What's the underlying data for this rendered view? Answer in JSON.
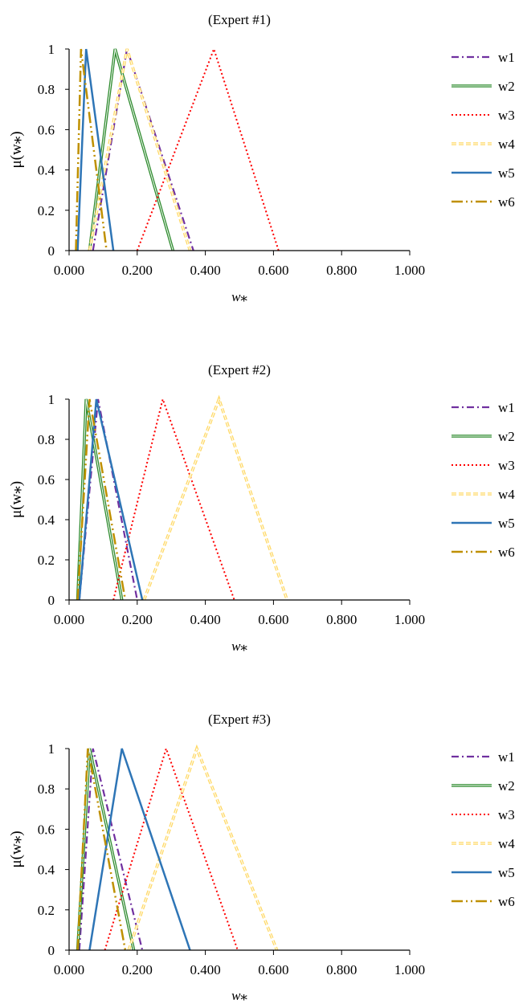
{
  "legend_labels": {
    "w1": "w1",
    "w2": "w2",
    "w3": "w3",
    "w4": "w4",
    "w5": "w5",
    "w6": "w6"
  },
  "series_colors": {
    "w1": "#7030A0",
    "w2": "#2E8B2E",
    "w3": "#FF0000",
    "w4": "#FFD966",
    "w5": "#2E75B6",
    "w6": "#BF9000"
  },
  "chart_data": [
    {
      "type": "line",
      "title": "(Expert #1)",
      "xlabel": "w⁎",
      "ylabel": "μ(w⁎)",
      "xlim": [
        0,
        1
      ],
      "ylim": [
        0,
        1
      ],
      "x_ticks": [
        "0.000",
        "0.200",
        "0.400",
        "0.600",
        "0.800",
        "1.000"
      ],
      "y_ticks": [
        "0",
        "0.2",
        "0.4",
        "0.6",
        "0.8",
        "1"
      ],
      "legend_position": "right",
      "grid": false,
      "series": [
        {
          "name": "w1",
          "x": [
            0.07,
            0.17,
            0.365
          ],
          "y": [
            0,
            1,
            0
          ]
        },
        {
          "name": "w2",
          "x": [
            0.06,
            0.135,
            0.305
          ],
          "y": [
            0,
            1,
            0
          ]
        },
        {
          "name": "w3",
          "x": [
            0.2,
            0.425,
            0.615
          ],
          "y": [
            0,
            1,
            0
          ]
        },
        {
          "name": "w4",
          "x": [
            0.06,
            0.17,
            0.355
          ],
          "y": [
            0,
            1,
            0
          ]
        },
        {
          "name": "w5",
          "x": [
            0.025,
            0.05,
            0.13
          ],
          "y": [
            0,
            1,
            0
          ]
        },
        {
          "name": "w6",
          "x": [
            0.02,
            0.035,
            0.11
          ],
          "y": [
            0,
            1,
            0
          ]
        }
      ]
    },
    {
      "type": "line",
      "title": "(Expert #2)",
      "xlabel": "w⁎",
      "ylabel": "μ(w⁎)",
      "xlim": [
        0,
        1
      ],
      "ylim": [
        0,
        1
      ],
      "x_ticks": [
        "0.000",
        "0.200",
        "0.400",
        "0.600",
        "0.800",
        "1.000"
      ],
      "y_ticks": [
        "0",
        "0.2",
        "0.4",
        "0.6",
        "0.8",
        "1"
      ],
      "legend_position": "right",
      "grid": false,
      "series": [
        {
          "name": "w1",
          "x": [
            0.03,
            0.085,
            0.2
          ],
          "y": [
            0,
            1,
            0
          ]
        },
        {
          "name": "w2",
          "x": [
            0.025,
            0.05,
            0.155
          ],
          "y": [
            0,
            1,
            0
          ]
        },
        {
          "name": "w3",
          "x": [
            0.13,
            0.275,
            0.485
          ],
          "y": [
            0,
            1,
            0
          ]
        },
        {
          "name": "w4",
          "x": [
            0.22,
            0.44,
            0.64
          ],
          "y": [
            0,
            1,
            0
          ]
        },
        {
          "name": "w5",
          "x": [
            0.03,
            0.08,
            0.215
          ],
          "y": [
            0,
            1,
            0
          ]
        },
        {
          "name": "w6",
          "x": [
            0.025,
            0.06,
            0.165
          ],
          "y": [
            0,
            1,
            0
          ]
        }
      ]
    },
    {
      "type": "line",
      "title": "(Expert #3)",
      "xlabel": "w⁎",
      "ylabel": "μ(w⁎)",
      "xlim": [
        0,
        1
      ],
      "ylim": [
        0,
        1
      ],
      "x_ticks": [
        "0.000",
        "0.200",
        "0.400",
        "0.600",
        "0.800",
        "1.000"
      ],
      "y_ticks": [
        "0",
        "0.2",
        "0.4",
        "0.6",
        "0.8",
        "1"
      ],
      "legend_position": "right",
      "grid": false,
      "series": [
        {
          "name": "w1",
          "x": [
            0.03,
            0.07,
            0.215
          ],
          "y": [
            0,
            1,
            0
          ]
        },
        {
          "name": "w2",
          "x": [
            0.025,
            0.06,
            0.19
          ],
          "y": [
            0,
            1,
            0
          ]
        },
        {
          "name": "w3",
          "x": [
            0.105,
            0.285,
            0.495
          ],
          "y": [
            0,
            1,
            0
          ]
        },
        {
          "name": "w4",
          "x": [
            0.175,
            0.375,
            0.61
          ],
          "y": [
            0,
            1,
            0
          ]
        },
        {
          "name": "w5",
          "x": [
            0.06,
            0.155,
            0.355
          ],
          "y": [
            0,
            1,
            0
          ]
        },
        {
          "name": "w6",
          "x": [
            0.025,
            0.055,
            0.165
          ],
          "y": [
            0,
            1,
            0
          ]
        }
      ]
    }
  ]
}
